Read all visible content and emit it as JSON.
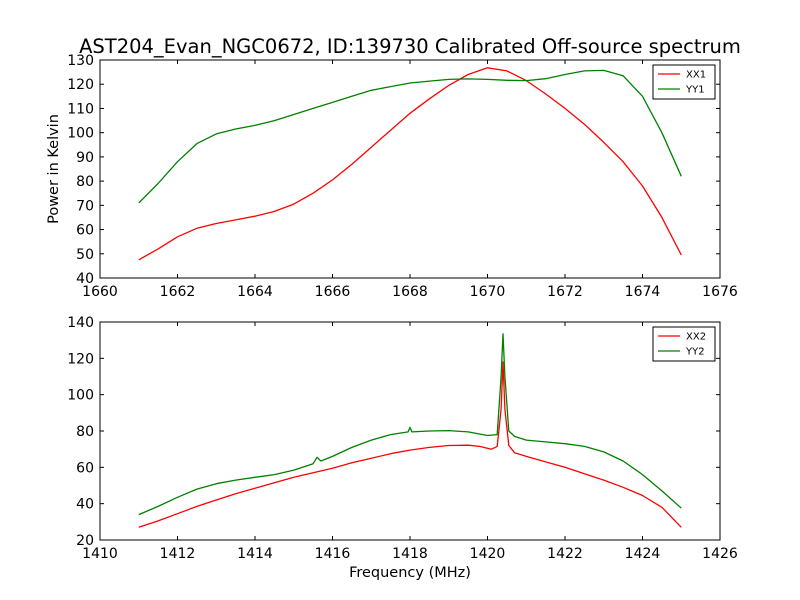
{
  "figure": {
    "title": "AST204_Evan_NGC0672, ID:139730 Calibrated Off-source spectrum",
    "ylabel": "Power in Kelvin",
    "xlabel": "Frequency (MHz)"
  },
  "chart_data": [
    {
      "type": "line",
      "title": "AST204_Evan_NGC0672, ID:139730 Calibrated Off-source spectrum",
      "ylabel": "Power in Kelvin",
      "xlabel": "",
      "xlim": [
        1660,
        1676
      ],
      "ylim": [
        40,
        130
      ],
      "xticks": [
        "1660",
        "1662",
        "1664",
        "1666",
        "1668",
        "1670",
        "1672",
        "1674",
        "1676"
      ],
      "yticks": [
        "40",
        "50",
        "60",
        "70",
        "80",
        "90",
        "100",
        "110",
        "120",
        "130"
      ],
      "legend": "top-right",
      "grid": false,
      "series": [
        {
          "name": "XX1",
          "color": "#ff0000",
          "points": [
            [
              1661,
              47.5
            ],
            [
              1661.5,
              52
            ],
            [
              1662,
              57
            ],
            [
              1662.5,
              60.5
            ],
            [
              1663,
              62.5
            ],
            [
              1663.5,
              64
            ],
            [
              1664,
              65.5
            ],
            [
              1664.5,
              67.5
            ],
            [
              1665,
              70.5
            ],
            [
              1665.5,
              75
            ],
            [
              1666,
              80.5
            ],
            [
              1666.5,
              87
            ],
            [
              1667,
              94
            ],
            [
              1667.5,
              101
            ],
            [
              1668,
              108
            ],
            [
              1668.5,
              114
            ],
            [
              1669,
              119.5
            ],
            [
              1669.5,
              124
            ],
            [
              1670,
              126.8
            ],
            [
              1670.5,
              125.5
            ],
            [
              1671,
              121.5
            ],
            [
              1671.5,
              116
            ],
            [
              1672,
              110
            ],
            [
              1672.5,
              103.5
            ],
            [
              1673,
              96
            ],
            [
              1673.5,
              88
            ],
            [
              1674,
              78
            ],
            [
              1674.5,
              65
            ],
            [
              1675,
              49.5
            ]
          ]
        },
        {
          "name": "YY1",
          "color": "#008000",
          "points": [
            [
              1661,
              71
            ],
            [
              1661.5,
              79
            ],
            [
              1662,
              88
            ],
            [
              1662.5,
              95.5
            ],
            [
              1663,
              99.5
            ],
            [
              1663.5,
              101.5
            ],
            [
              1664,
              103
            ],
            [
              1664.5,
              105
            ],
            [
              1665,
              107.5
            ],
            [
              1665.5,
              110
            ],
            [
              1666,
              112.5
            ],
            [
              1666.5,
              115
            ],
            [
              1667,
              117.5
            ],
            [
              1667.5,
              119
            ],
            [
              1668,
              120.5
            ],
            [
              1668.5,
              121.3
            ],
            [
              1669,
              122
            ],
            [
              1669.5,
              122.2
            ],
            [
              1670,
              122
            ],
            [
              1670.5,
              121.6
            ],
            [
              1671,
              121.5
            ],
            [
              1671.5,
              122.3
            ],
            [
              1672,
              124
            ],
            [
              1672.5,
              125.5
            ],
            [
              1673,
              125.7
            ],
            [
              1673.5,
              123.5
            ],
            [
              1674,
              115
            ],
            [
              1674.5,
              100
            ],
            [
              1675,
              82
            ]
          ]
        }
      ]
    },
    {
      "type": "line",
      "title": "",
      "ylabel": "",
      "xlabel": "Frequency (MHz)",
      "xlim": [
        1410,
        1426
      ],
      "ylim": [
        20,
        140
      ],
      "xticks": [
        "1410",
        "1412",
        "1414",
        "1416",
        "1418",
        "1420",
        "1422",
        "1424",
        "1426"
      ],
      "yticks": [
        "20",
        "40",
        "60",
        "80",
        "100",
        "120",
        "140"
      ],
      "legend": "top-right",
      "grid": false,
      "series": [
        {
          "name": "XX2",
          "color": "#ff0000",
          "points": [
            [
              1411,
              27
            ],
            [
              1411.5,
              30.5
            ],
            [
              1412,
              34.5
            ],
            [
              1412.5,
              38.5
            ],
            [
              1413,
              42
            ],
            [
              1413.5,
              45.5
            ],
            [
              1414,
              48.5
            ],
            [
              1414.5,
              51.5
            ],
            [
              1415,
              54.5
            ],
            [
              1415.5,
              57
            ],
            [
              1416,
              59.5
            ],
            [
              1416.5,
              62.5
            ],
            [
              1417,
              65
            ],
            [
              1417.5,
              67.5
            ],
            [
              1418,
              69.5
            ],
            [
              1418.5,
              71
            ],
            [
              1419,
              72
            ],
            [
              1419.5,
              72.2
            ],
            [
              1419.8,
              71.5
            ],
            [
              1420.1,
              70
            ],
            [
              1420.25,
              71.5
            ],
            [
              1420.35,
              92
            ],
            [
              1420.4,
              118
            ],
            [
              1420.45,
              92
            ],
            [
              1420.55,
              72
            ],
            [
              1420.7,
              68
            ],
            [
              1421,
              66
            ],
            [
              1421.5,
              63
            ],
            [
              1422,
              60
            ],
            [
              1422.5,
              56.5
            ],
            [
              1423,
              53
            ],
            [
              1423.5,
              49
            ],
            [
              1424,
              44.5
            ],
            [
              1424.5,
              38
            ],
            [
              1425,
              27
            ]
          ]
        },
        {
          "name": "YY2",
          "color": "#008000",
          "points": [
            [
              1411,
              34
            ],
            [
              1411.5,
              38.5
            ],
            [
              1412,
              43.5
            ],
            [
              1412.5,
              48
            ],
            [
              1413,
              51
            ],
            [
              1413.5,
              53
            ],
            [
              1414,
              54.5
            ],
            [
              1414.5,
              56
            ],
            [
              1415,
              58.5
            ],
            [
              1415.5,
              62
            ],
            [
              1415.6,
              65.5
            ],
            [
              1415.7,
              63.5
            ],
            [
              1416,
              66
            ],
            [
              1416.5,
              71
            ],
            [
              1417,
              75
            ],
            [
              1417.5,
              78
            ],
            [
              1417.95,
              79.5
            ],
            [
              1418,
              82
            ],
            [
              1418.05,
              79.5
            ],
            [
              1418.5,
              80
            ],
            [
              1419,
              80.2
            ],
            [
              1419.5,
              79.5
            ],
            [
              1420,
              77.5
            ],
            [
              1420.25,
              78
            ],
            [
              1420.35,
              110
            ],
            [
              1420.4,
              133.5
            ],
            [
              1420.45,
              110
            ],
            [
              1420.55,
              80
            ],
            [
              1420.7,
              77
            ],
            [
              1421,
              75
            ],
            [
              1421.5,
              74
            ],
            [
              1422,
              73
            ],
            [
              1422.5,
              71.5
            ],
            [
              1423,
              68.5
            ],
            [
              1423.5,
              63.5
            ],
            [
              1424,
              56
            ],
            [
              1424.5,
              47
            ],
            [
              1425,
              37.5
            ]
          ]
        }
      ]
    }
  ]
}
